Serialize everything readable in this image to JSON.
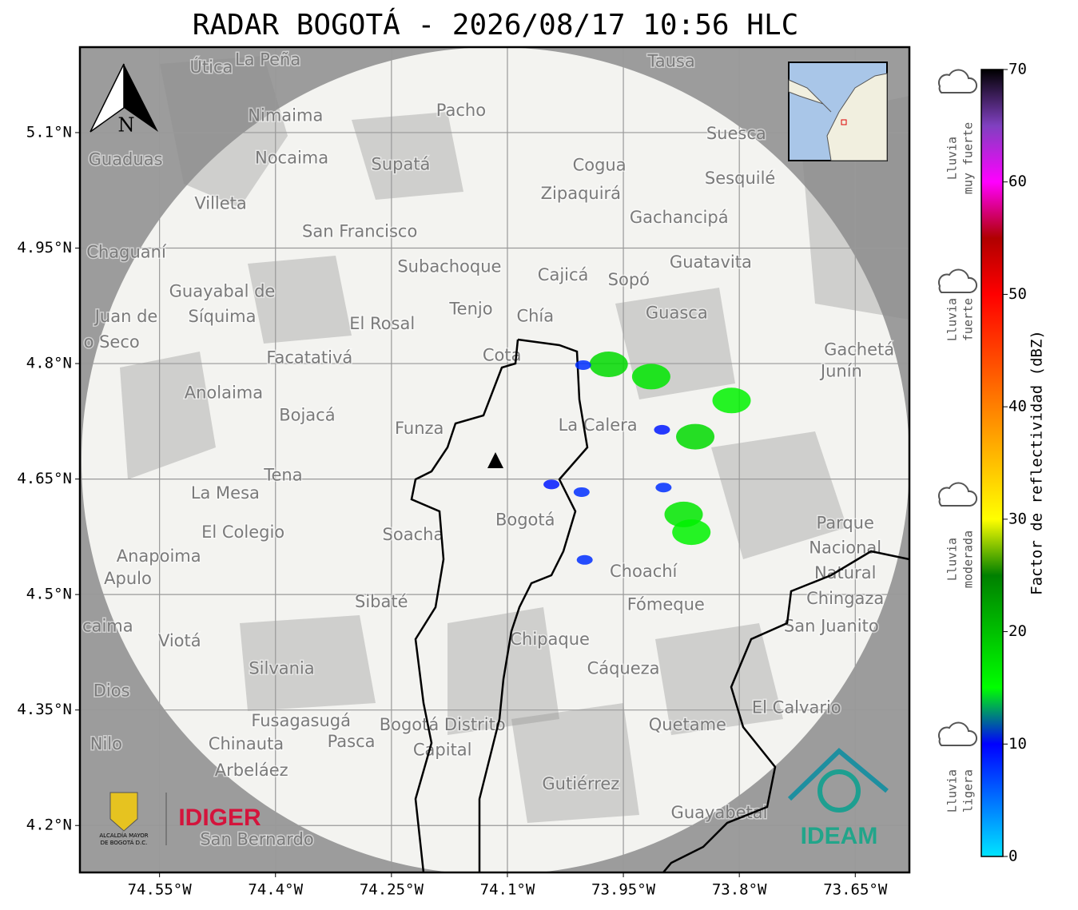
{
  "title": "RADAR BOGOTÁ - 2026/08/17 10:56 HLC",
  "map": {
    "xlim": [
      -74.653,
      -73.58
    ],
    "ylim": [
      4.139,
      5.211
    ],
    "grid": true,
    "xticks": [
      {
        "value": -74.55,
        "label": "74.55°W"
      },
      {
        "value": -74.4,
        "label": "74.4°W"
      },
      {
        "value": -74.25,
        "label": "74.25°W"
      },
      {
        "value": -74.1,
        "label": "74.1°W"
      },
      {
        "value": -73.95,
        "label": "73.95°W"
      },
      {
        "value": -73.8,
        "label": "73.8°W"
      },
      {
        "value": -73.65,
        "label": "73.65°W"
      }
    ],
    "yticks": [
      {
        "value": 5.1,
        "label": "5.1°N"
      },
      {
        "value": 4.95,
        "label": "4.95°N"
      },
      {
        "value": 4.8,
        "label": "4.8°N"
      },
      {
        "value": 4.65,
        "label": "4.65°N"
      },
      {
        "value": 4.5,
        "label": "4.5°N"
      },
      {
        "value": 4.35,
        "label": "4.35°N"
      },
      {
        "value": 4.2,
        "label": "4.2°N"
      }
    ],
    "places": [
      {
        "name": "La Peña",
        "lon": -74.41,
        "lat": 5.194
      },
      {
        "name": "Útica",
        "lon": -74.483,
        "lat": 5.184
      },
      {
        "name": "Tausa",
        "lon": -73.888,
        "lat": 5.192
      },
      {
        "name": "Pacho",
        "lon": -74.16,
        "lat": 5.128
      },
      {
        "name": "Nimaima",
        "lon": -74.387,
        "lat": 5.121
      },
      {
        "name": "Suesca",
        "lon": -73.804,
        "lat": 5.098
      },
      {
        "name": "Guaduas",
        "lon": -74.594,
        "lat": 5.064
      },
      {
        "name": "Nocaima",
        "lon": -74.379,
        "lat": 5.066
      },
      {
        "name": "Supatá",
        "lon": -74.238,
        "lat": 5.058
      },
      {
        "name": "Cogua",
        "lon": -73.981,
        "lat": 5.057
      },
      {
        "name": "Sesquilé",
        "lon": -73.799,
        "lat": 5.04
      },
      {
        "name": "Zipaquirá",
        "lon": -74.005,
        "lat": 5.02
      },
      {
        "name": "Villeta",
        "lon": -74.471,
        "lat": 5.007
      },
      {
        "name": "Gachancipá",
        "lon": -73.878,
        "lat": 4.989
      },
      {
        "name": "San Francisco",
        "lon": -74.291,
        "lat": 4.971
      },
      {
        "name": "Chaguaní",
        "lon": -74.593,
        "lat": 4.944
      },
      {
        "name": "Guatavita",
        "lon": -73.837,
        "lat": 4.931
      },
      {
        "name": "Subachoque",
        "lon": -74.175,
        "lat": 4.925
      },
      {
        "name": "Cajicá",
        "lon": -74.028,
        "lat": 4.914
      },
      {
        "name": "Sopó",
        "lon": -73.943,
        "lat": 4.908
      },
      {
        "name": "Guayabal de",
        "lon": -74.469,
        "lat": 4.893
      },
      {
        "name": "Síquima",
        "lon": -74.469,
        "lat": 4.86
      },
      {
        "name": "Tenjo",
        "lon": -74.147,
        "lat": 4.87
      },
      {
        "name": "Chía",
        "lon": -74.064,
        "lat": 4.861
      },
      {
        "name": "Guasca",
        "lon": -73.881,
        "lat": 4.865
      },
      {
        "name": "Juan de",
        "lon": -74.593,
        "lat": 4.86
      },
      {
        "name": "o Seco",
        "lon": -74.612,
        "lat": 4.827
      },
      {
        "name": "El Rosal",
        "lon": -74.262,
        "lat": 4.851
      },
      {
        "name": "Facatativá",
        "lon": -74.356,
        "lat": 4.807
      },
      {
        "name": "Cota",
        "lon": -74.107,
        "lat": 4.81
      },
      {
        "name": "Gachetá",
        "lon": -73.645,
        "lat": 4.817
      },
      {
        "name": "Junín",
        "lon": -73.668,
        "lat": 4.789
      },
      {
        "name": "Anolaima",
        "lon": -74.467,
        "lat": 4.761
      },
      {
        "name": "Bojacá",
        "lon": -74.359,
        "lat": 4.732
      },
      {
        "name": "Funza",
        "lon": -74.214,
        "lat": 4.715
      },
      {
        "name": "La Calera",
        "lon": -73.983,
        "lat": 4.719
      },
      {
        "name": "Tena",
        "lon": -74.39,
        "lat": 4.654
      },
      {
        "name": "La Mesa",
        "lon": -74.465,
        "lat": 4.631
      },
      {
        "name": "Bogotá",
        "lon": -74.077,
        "lat": 4.596
      },
      {
        "name": "El Colegio",
        "lon": -74.442,
        "lat": 4.58
      },
      {
        "name": "Soacha",
        "lon": -74.222,
        "lat": 4.577
      },
      {
        "name": "Parque",
        "lon": -73.663,
        "lat": 4.592
      },
      {
        "name": "Nacional",
        "lon": -73.663,
        "lat": 4.56
      },
      {
        "name": "Natural",
        "lon": -73.663,
        "lat": 4.527
      },
      {
        "name": "Chingaza",
        "lon": -73.663,
        "lat": 4.494
      },
      {
        "name": "Anapoima",
        "lon": -74.551,
        "lat": 4.549
      },
      {
        "name": "Apulo",
        "lon": -74.591,
        "lat": 4.52
      },
      {
        "name": "Choachí",
        "lon": -73.924,
        "lat": 4.529
      },
      {
        "name": "Sibaté",
        "lon": -74.263,
        "lat": 4.49
      },
      {
        "name": "Fómeque",
        "lon": -73.895,
        "lat": 4.486
      },
      {
        "name": "San Juanito",
        "lon": -73.681,
        "lat": 4.458
      },
      {
        "name": "caima",
        "lon": -74.617,
        "lat": 4.458
      },
      {
        "name": "Viotá",
        "lon": -74.524,
        "lat": 4.439
      },
      {
        "name": "Chipaque",
        "lon": -74.045,
        "lat": 4.441
      },
      {
        "name": "Silvania",
        "lon": -74.392,
        "lat": 4.403
      },
      {
        "name": "Cáqueza",
        "lon": -73.95,
        "lat": 4.403
      },
      {
        "name": "Dios",
        "lon": -74.612,
        "lat": 4.374
      },
      {
        "name": "El Calvario",
        "lon": -73.726,
        "lat": 4.352
      },
      {
        "name": "Fusagasugá",
        "lon": -74.367,
        "lat": 4.335
      },
      {
        "name": "Bogotá Distrito",
        "lon": -74.184,
        "lat": 4.33
      },
      {
        "name": "Capital",
        "lon": -74.184,
        "lat": 4.297
      },
      {
        "name": "Quetame",
        "lon": -73.867,
        "lat": 4.33
      },
      {
        "name": "Nilo",
        "lon": -74.619,
        "lat": 4.305
      },
      {
        "name": "Chinauta",
        "lon": -74.438,
        "lat": 4.305
      },
      {
        "name": "Pasca",
        "lon": -74.302,
        "lat": 4.308
      },
      {
        "name": "Arbeláez",
        "lon": -74.431,
        "lat": 4.271
      },
      {
        "name": "Gutiérrez",
        "lon": -74.005,
        "lat": 4.253
      },
      {
        "name": "Guayabetal",
        "lon": -73.826,
        "lat": 4.216
      },
      {
        "name": "San Bernardo",
        "lon": -74.424,
        "lat": 4.181
      }
    ],
    "echoes": [
      {
        "lon": -73.969,
        "lat": 4.799,
        "dbz": 18
      },
      {
        "lon": -73.914,
        "lat": 4.783,
        "dbz": 17
      },
      {
        "lon": -73.857,
        "lat": 4.705,
        "dbz": 18
      },
      {
        "lon": -73.872,
        "lat": 4.604,
        "dbz": 17
      },
      {
        "lon": -73.862,
        "lat": 4.581,
        "dbz": 16
      },
      {
        "lon": -73.898,
        "lat": 4.639,
        "dbz": 8
      },
      {
        "lon": -73.81,
        "lat": 4.752,
        "dbz": 16
      },
      {
        "lon": -74.002,
        "lat": 4.798,
        "dbz": 8
      },
      {
        "lon": -74.004,
        "lat": 4.633,
        "dbz": 8
      },
      {
        "lon": -74.0,
        "lat": 4.545,
        "dbz": 8
      },
      {
        "lon": -74.043,
        "lat": 4.643,
        "dbz": 9
      },
      {
        "lon": -73.9,
        "lat": 4.714,
        "dbz": 9
      }
    ]
  },
  "north_label": "N",
  "logos": {
    "alcaldia": [
      "ALCALDÍA MAYOR",
      "DE BOGOTÁ D.C."
    ],
    "idiger": "IDIGER",
    "ideam": "IDEAM"
  },
  "colorbar": {
    "label": "Factor de reflectividad (dBZ)",
    "lim": [
      0,
      70
    ],
    "ticks": [
      0,
      10,
      20,
      30,
      40,
      50,
      60,
      70
    ],
    "stops": [
      [
        0,
        "#00e5ff"
      ],
      [
        10,
        "#0000ff"
      ],
      [
        15,
        "#00ff00"
      ],
      [
        25,
        "#008000"
      ],
      [
        30,
        "#ffff00"
      ],
      [
        40,
        "#ff8000"
      ],
      [
        50,
        "#ff0000"
      ],
      [
        55,
        "#b00000"
      ],
      [
        60,
        "#ff00ff"
      ],
      [
        65,
        "#8040c0"
      ],
      [
        70,
        "#000000"
      ]
    ]
  },
  "rain_classes": [
    [
      "Lluvia",
      "muy fuerte"
    ],
    [
      "Lluvia",
      "fuerte"
    ],
    [
      "Lluvia",
      "moderada"
    ],
    [
      "Lluvia",
      "ligera"
    ]
  ]
}
